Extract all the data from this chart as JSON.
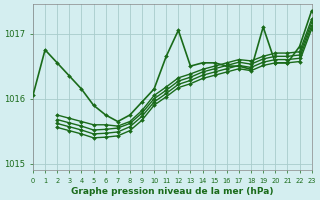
{
  "title": "Graphe pression niveau de la mer (hPa)",
  "background_color": "#d4eef0",
  "grid_color": "#a8cccc",
  "line_color": "#1a6b1a",
  "text_color": "#1a6b1a",
  "xlim": [
    0,
    23
  ],
  "ylim": [
    1014.9,
    1017.45
  ],
  "yticks": [
    1015,
    1016,
    1017
  ],
  "xticks": [
    0,
    1,
    2,
    3,
    4,
    5,
    6,
    7,
    8,
    9,
    10,
    11,
    12,
    13,
    14,
    15,
    16,
    17,
    18,
    19,
    20,
    21,
    22,
    23
  ],
  "series": [
    {
      "x": [
        0,
        1,
        2,
        3,
        4,
        5,
        6,
        7,
        8,
        9,
        10,
        11,
        12,
        13,
        14,
        15,
        16,
        17,
        18,
        19,
        20,
        21,
        22,
        23
      ],
      "y": [
        1016.05,
        1016.75,
        1016.55,
        1016.35,
        1016.15,
        1015.9,
        1015.75,
        1015.65,
        1015.75,
        1015.95,
        1016.15,
        1016.65,
        1017.05,
        1016.5,
        1016.55,
        1016.55,
        1016.5,
        1016.5,
        1016.45,
        1017.1,
        1016.55,
        1016.55,
        1016.8,
        1017.35
      ],
      "lw": 1.2,
      "marker": true
    },
    {
      "x": [
        2,
        3,
        4,
        5,
        6,
        7,
        8,
        9,
        10,
        11,
        12,
        13,
        14,
        15,
        16,
        17,
        18,
        19,
        20,
        21,
        22,
        23
      ],
      "y": [
        1015.75,
        1015.7,
        1015.65,
        1015.6,
        1015.6,
        1015.58,
        1015.65,
        1015.82,
        1016.05,
        1016.18,
        1016.32,
        1016.38,
        1016.45,
        1016.5,
        1016.55,
        1016.6,
        1016.58,
        1016.65,
        1016.7,
        1016.7,
        1016.72,
        1017.22
      ],
      "lw": 1.0,
      "marker": true
    },
    {
      "x": [
        2,
        3,
        4,
        5,
        6,
        7,
        8,
        9,
        10,
        11,
        12,
        13,
        14,
        15,
        16,
        17,
        18,
        19,
        20,
        21,
        22,
        23
      ],
      "y": [
        1015.68,
        1015.63,
        1015.58,
        1015.52,
        1015.53,
        1015.55,
        1015.62,
        1015.78,
        1016.0,
        1016.13,
        1016.27,
        1016.33,
        1016.41,
        1016.46,
        1016.51,
        1016.56,
        1016.53,
        1016.61,
        1016.65,
        1016.65,
        1016.67,
        1017.17
      ],
      "lw": 1.0,
      "marker": true
    },
    {
      "x": [
        2,
        3,
        4,
        5,
        6,
        7,
        8,
        9,
        10,
        11,
        12,
        13,
        14,
        15,
        16,
        17,
        18,
        19,
        20,
        21,
        22,
        23
      ],
      "y": [
        1015.62,
        1015.57,
        1015.52,
        1015.46,
        1015.47,
        1015.49,
        1015.57,
        1015.73,
        1015.95,
        1016.08,
        1016.22,
        1016.28,
        1016.36,
        1016.41,
        1016.46,
        1016.51,
        1016.48,
        1016.56,
        1016.6,
        1016.6,
        1016.62,
        1017.12
      ],
      "lw": 1.0,
      "marker": true
    },
    {
      "x": [
        2,
        3,
        4,
        5,
        6,
        7,
        8,
        9,
        10,
        11,
        12,
        13,
        14,
        15,
        16,
        17,
        18,
        19,
        20,
        21,
        22,
        23
      ],
      "y": [
        1015.56,
        1015.51,
        1015.46,
        1015.4,
        1015.41,
        1015.43,
        1015.51,
        1015.67,
        1015.9,
        1016.03,
        1016.17,
        1016.23,
        1016.31,
        1016.36,
        1016.41,
        1016.46,
        1016.43,
        1016.51,
        1016.55,
        1016.55,
        1016.57,
        1017.07
      ],
      "lw": 1.0,
      "marker": true
    }
  ]
}
